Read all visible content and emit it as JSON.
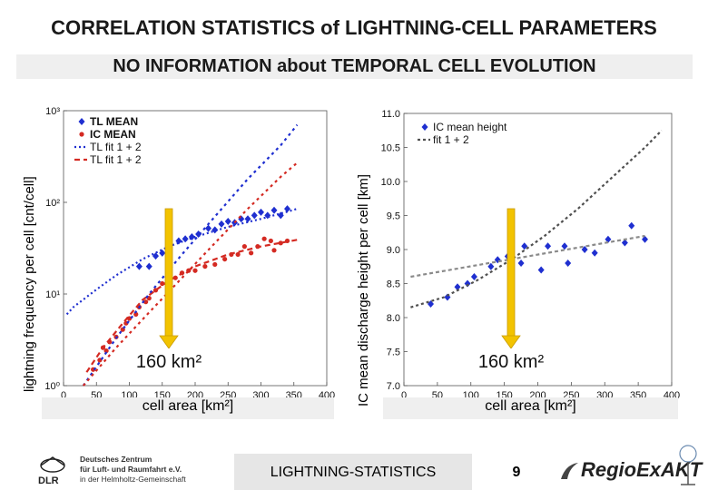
{
  "page": {
    "title": "CORRELATION STATISTICS of LIGHTNING-CELL PARAMETERS",
    "subtitle": "NO INFORMATION about TEMPORAL CELL EVOLUTION",
    "footer_text": "LIGHTNING-STATISTICS",
    "page_number": "9",
    "logo_left_lines": [
      "Deutsches Zentrum",
      "für Luft- und Raumfahrt e.V.",
      "in der Helmholtz-Gemeinschaft"
    ],
    "logo_left_mark": "DLR",
    "logo_right": "RegioExAKT"
  },
  "colors": {
    "blue": "#1f2fd0",
    "red": "#d42a22",
    "gray_fit": "#8a8a8a",
    "dark_fit": "#505050",
    "arrow": "#f2c300",
    "arrow_edge": "#c89a00"
  },
  "chart_data": [
    {
      "type": "scatter",
      "ylabel": "lightning frequency per cell [cnt/cell]",
      "xlabel": "cell area [km²]",
      "x_ticks": [
        "0",
        "50",
        "100",
        "150",
        "200",
        "250",
        "300",
        "350",
        "400"
      ],
      "y_ticks": [
        "10⁰",
        "10¹",
        "10²",
        "10³"
      ],
      "xlim": [
        0,
        400
      ],
      "ylim": [
        1,
        1000
      ],
      "y_scale": "log",
      "grid": false,
      "legend": "top-left",
      "annotation": "160 km²",
      "annotation_x": 160,
      "series": [
        {
          "name": "TL MEAN",
          "kind": "points",
          "color": "blue",
          "marker": "diamond",
          "points": [
            [
              115,
              20
            ],
            [
              130,
              20
            ],
            [
              140,
              26
            ],
            [
              150,
              28
            ],
            [
              160,
              28
            ],
            [
              175,
              38
            ],
            [
              185,
              40
            ],
            [
              195,
              42
            ],
            [
              205,
              45
            ],
            [
              220,
              52
            ],
            [
              230,
              50
            ],
            [
              240,
              58
            ],
            [
              250,
              62
            ],
            [
              260,
              60
            ],
            [
              270,
              66
            ],
            [
              280,
              66
            ],
            [
              290,
              72
            ],
            [
              300,
              78
            ],
            [
              310,
              72
            ],
            [
              320,
              82
            ],
            [
              330,
              72
            ],
            [
              340,
              85
            ]
          ]
        },
        {
          "name": "IC MEAN",
          "kind": "points",
          "color": "red",
          "marker": "dot",
          "points": [
            [
              45,
              1.5
            ],
            [
              55,
              1.9
            ],
            [
              60,
              2.6
            ],
            [
              65,
              2.4
            ],
            [
              70,
              3.0
            ],
            [
              80,
              3.4
            ],
            [
              90,
              4.1
            ],
            [
              95,
              4.8
            ],
            [
              100,
              5.4
            ],
            [
              110,
              6.0
            ],
            [
              115,
              7.2
            ],
            [
              125,
              8.2
            ],
            [
              130,
              9.0
            ],
            [
              140,
              11
            ],
            [
              150,
              13
            ],
            [
              160,
              14
            ],
            [
              170,
              15
            ],
            [
              180,
              17
            ],
            [
              190,
              18
            ],
            [
              200,
              18
            ],
            [
              215,
              20
            ],
            [
              230,
              21
            ],
            [
              245,
              24
            ],
            [
              255,
              27
            ],
            [
              265,
              27
            ],
            [
              275,
              33
            ],
            [
              285,
              28
            ],
            [
              295,
              33
            ],
            [
              305,
              40
            ],
            [
              315,
              38
            ],
            [
              320,
              30
            ],
            [
              330,
              36
            ],
            [
              340,
              38
            ]
          ]
        },
        {
          "name": "TL fit 1 + 2",
          "kind": "line",
          "color": "blue",
          "dash": "2,3",
          "points": [
            [
              5,
              6
            ],
            [
              15,
              7.2
            ],
            [
              30,
              8.7
            ],
            [
              50,
              11.2
            ],
            [
              80,
              16
            ],
            [
              120,
              24
            ],
            [
              160,
              33
            ],
            [
              200,
              42
            ],
            [
              250,
              54
            ],
            [
              300,
              66
            ],
            [
              340,
              79
            ],
            [
              355,
              85
            ]
          ]
        },
        {
          "name": "TL fit 1 + 2",
          "kind": "line",
          "color": "red",
          "dash": "6,4",
          "points": [
            [
              35,
              1.4
            ],
            [
              60,
              2.6
            ],
            [
              90,
              4.8
            ],
            [
              120,
              8.6
            ],
            [
              160,
              14
            ],
            [
              200,
              20
            ],
            [
              250,
              27
            ],
            [
              300,
              33
            ],
            [
              355,
              39
            ]
          ]
        },
        {
          "name": "",
          "kind": "line",
          "color": "blue",
          "dash": "3,4",
          "points": [
            [
              30,
              1
            ],
            [
              80,
              3.3
            ],
            [
              130,
              10
            ],
            [
              180,
              27
            ],
            [
              230,
              70
            ],
            [
              280,
              180
            ],
            [
              330,
              420
            ],
            [
              355,
              700
            ]
          ]
        },
        {
          "name": "",
          "kind": "line",
          "color": "red",
          "dash": "3,4",
          "points": [
            [
              30,
              1
            ],
            [
              80,
              2.6
            ],
            [
              130,
              6.3
            ],
            [
              180,
              15
            ],
            [
              230,
              36
            ],
            [
              280,
              85
            ],
            [
              330,
              190
            ],
            [
              355,
              270
            ]
          ]
        }
      ]
    },
    {
      "type": "scatter",
      "ylabel": "IC mean discharge height per cell [km]",
      "xlabel": "cell area [km²]",
      "x_ticks": [
        "0",
        "50",
        "100",
        "150",
        "200",
        "250",
        "300",
        "350",
        "400"
      ],
      "y_ticks": [
        "7.0",
        "7.5",
        "8.0",
        "8.5",
        "9.0",
        "9.5",
        "10.0",
        "10.5",
        "11.0"
      ],
      "xlim": [
        0,
        400
      ],
      "ylim": [
        7.0,
        11.0
      ],
      "y_scale": "linear",
      "grid": false,
      "legend": "top-right",
      "annotation": "160 km²",
      "annotation_x": 160,
      "series": [
        {
          "name": "IC mean height",
          "kind": "points",
          "color": "blue",
          "marker": "diamond",
          "points": [
            [
              40,
              8.2
            ],
            [
              65,
              8.3
            ],
            [
              80,
              8.45
            ],
            [
              95,
              8.5
            ],
            [
              105,
              8.6
            ],
            [
              130,
              8.75
            ],
            [
              140,
              8.85
            ],
            [
              155,
              8.9
            ],
            [
              175,
              8.8
            ],
            [
              180,
              9.05
            ],
            [
              205,
              8.7
            ],
            [
              215,
              9.05
            ],
            [
              240,
              9.05
            ],
            [
              245,
              8.8
            ],
            [
              270,
              9.0
            ],
            [
              285,
              8.95
            ],
            [
              305,
              9.15
            ],
            [
              330,
              9.1
            ],
            [
              340,
              9.35
            ],
            [
              360,
              9.15
            ]
          ]
        },
        {
          "name": "fit 1 + 2",
          "kind": "line",
          "color": "dark_fit",
          "dash": "3,3",
          "points": [
            [
              10,
              8.15
            ],
            [
              60,
              8.3
            ],
            [
              110,
              8.55
            ],
            [
              160,
              8.85
            ],
            [
              210,
              9.2
            ],
            [
              260,
              9.6
            ],
            [
              310,
              10.05
            ],
            [
              360,
              10.5
            ],
            [
              385,
              10.75
            ]
          ]
        },
        {
          "name": "",
          "kind": "line",
          "color": "gray_fit",
          "dash": "4,3",
          "points": [
            [
              10,
              8.6
            ],
            [
              360,
              9.2
            ]
          ]
        }
      ]
    }
  ]
}
